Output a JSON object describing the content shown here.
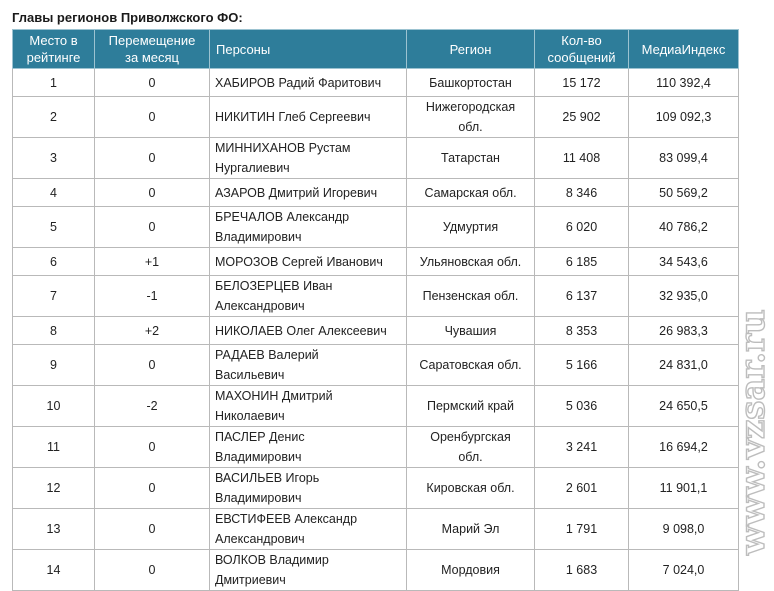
{
  "caption": "Главы регионов Приволжского ФО:",
  "headers": {
    "rank": [
      "Место в",
      "рейтинге"
    ],
    "move": [
      "Перемещение",
      "за месяц"
    ],
    "person": "Персоны",
    "region": "Регион",
    "count": [
      "Кол-во",
      "сообщений"
    ],
    "index": "МедиаИндекс"
  },
  "rows": [
    {
      "rank": "1",
      "move": "0",
      "person": [
        "ХАБИРОВ Радий Фаритович"
      ],
      "region": [
        "Башкортостан"
      ],
      "count": "15 172",
      "index": "110 392,4"
    },
    {
      "rank": "2",
      "move": "0",
      "person": [
        "НИКИТИН Глеб Сергеевич"
      ],
      "region": [
        "Нижегородская",
        "обл."
      ],
      "count": "25 902",
      "index": "109 092,3"
    },
    {
      "rank": "3",
      "move": "0",
      "person": [
        "МИННИХАНОВ Рустам",
        "Нургалиевич"
      ],
      "region": [
        "Татарстан"
      ],
      "count": "11 408",
      "index": "83 099,4"
    },
    {
      "rank": "4",
      "move": "0",
      "person": [
        "АЗАРОВ Дмитрий Игоревич"
      ],
      "region": [
        "Самарская обл."
      ],
      "count": "8 346",
      "index": "50 569,2"
    },
    {
      "rank": "5",
      "move": "0",
      "person": [
        "БРЕЧАЛОВ Александр",
        "Владимирович"
      ],
      "region": [
        "Удмуртия"
      ],
      "count": "6 020",
      "index": "40 786,2"
    },
    {
      "rank": "6",
      "move": "+1",
      "person": [
        "МОРОЗОВ Сергей Иванович"
      ],
      "region": [
        "Ульяновская обл."
      ],
      "count": "6 185",
      "index": "34 543,6"
    },
    {
      "rank": "7",
      "move": "-1",
      "person": [
        "БЕЛОЗЕРЦЕВ Иван",
        "Александрович"
      ],
      "region": [
        "Пензенская обл."
      ],
      "count": "6 137",
      "index": "32 935,0"
    },
    {
      "rank": "8",
      "move": "+2",
      "person": [
        "НИКОЛАЕВ Олег Алексеевич"
      ],
      "region": [
        "Чувашия"
      ],
      "count": "8 353",
      "index": "26 983,3"
    },
    {
      "rank": "9",
      "move": "0",
      "person": [
        "РАДАЕВ Валерий",
        "Васильевич"
      ],
      "region": [
        "Саратовская обл."
      ],
      "count": "5 166",
      "index": "24 831,0"
    },
    {
      "rank": "10",
      "move": "-2",
      "person": [
        "МАХОНИН Дмитрий",
        "Николаевич"
      ],
      "region": [
        "Пермский край"
      ],
      "count": "5 036",
      "index": "24 650,5"
    },
    {
      "rank": "11",
      "move": "0",
      "person": [
        "ПАСЛЕР Денис",
        "Владимирович"
      ],
      "region": [
        "Оренбургская",
        "обл."
      ],
      "count": "3 241",
      "index": "16 694,2"
    },
    {
      "rank": "12",
      "move": "0",
      "person": [
        "ВАСИЛЬЕВ Игорь",
        "Владимирович"
      ],
      "region": [
        "Кировская обл."
      ],
      "count": "2 601",
      "index": "11 901,1"
    },
    {
      "rank": "13",
      "move": "0",
      "person": [
        "ЕВСТИФЕЕВ Александр",
        "Александрович"
      ],
      "region": [
        "Марий Эл"
      ],
      "count": "1 791",
      "index": "9 098,0"
    },
    {
      "rank": "14",
      "move": "0",
      "person": [
        "ВОЛКОВ Владимир",
        "Дмитриевич"
      ],
      "region": [
        "Мордовия"
      ],
      "count": "1 683",
      "index": "7 024,0"
    }
  ],
  "watermark": "www.vzsar.ru"
}
